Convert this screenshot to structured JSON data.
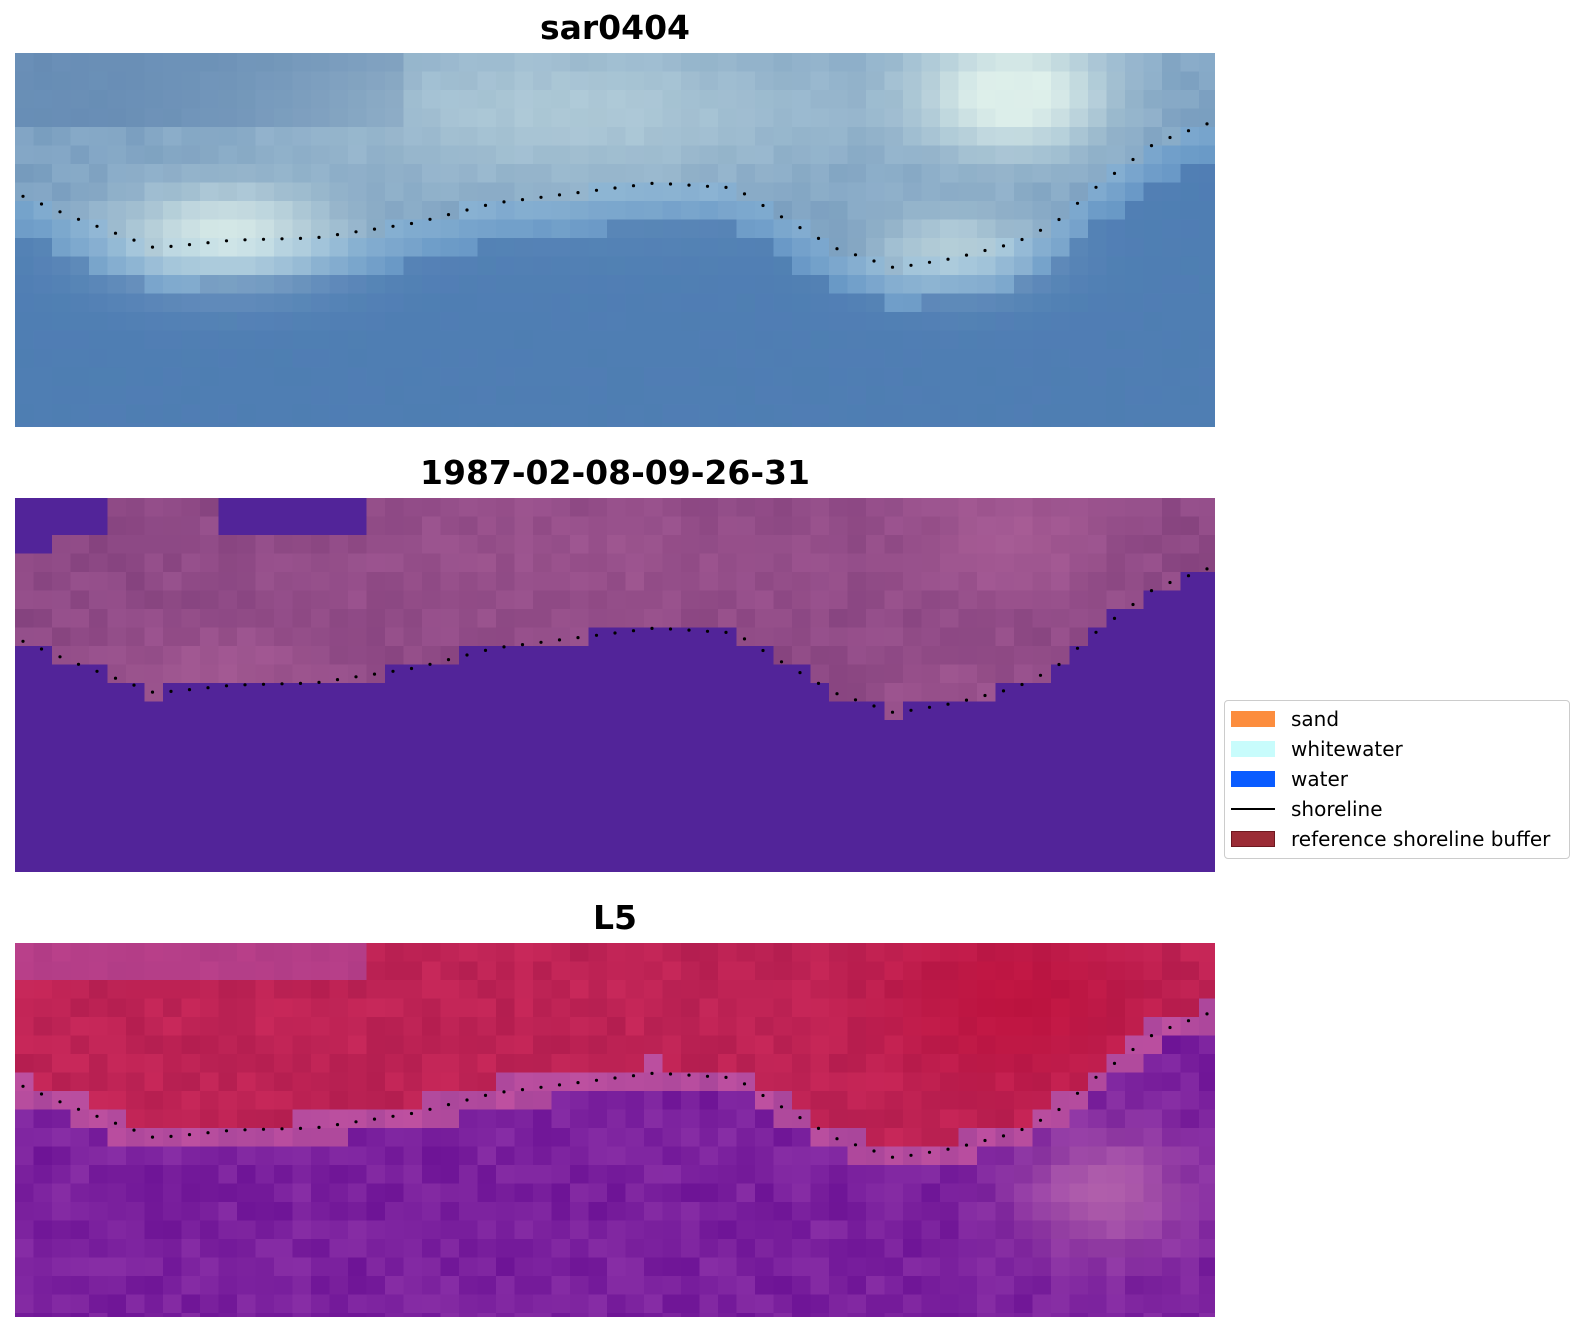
{
  "panels": [
    {
      "title": "sar0404",
      "palette": "rgb"
    },
    {
      "title": "1987-02-08-09-26-31",
      "palette": "classified"
    },
    {
      "title": "L5",
      "palette": "ndwi"
    }
  ],
  "legend": {
    "items": [
      {
        "label": "sand",
        "type": "patch",
        "color": "#fc8d3e"
      },
      {
        "label": "whitewater",
        "type": "patch",
        "color": "#c8fcfc"
      },
      {
        "label": "water",
        "type": "patch",
        "color": "#0a5cff"
      },
      {
        "label": "shoreline",
        "type": "line",
        "color": "#000000"
      },
      {
        "label": "reference shoreline buffer",
        "type": "patch",
        "color": "#9b2c36",
        "edge": "#6e1820"
      }
    ]
  },
  "colors": {
    "classified_water": "#522499",
    "classified_land": "#9a5590",
    "shoreline_dots": "#000000"
  }
}
